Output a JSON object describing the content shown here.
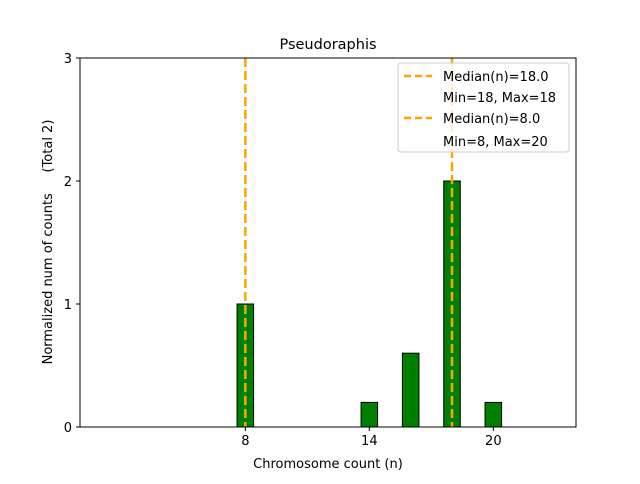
{
  "chart_data": {
    "type": "bar",
    "title": "Pseudoraphis",
    "xlabel": "Chromosome count (n)",
    "ylabel": "Normalized num of counts     (Total 2)",
    "xlim": [
      0,
      24
    ],
    "ylim": [
      0,
      3
    ],
    "xticks": [
      8,
      14,
      20
    ],
    "yticks": [
      0,
      1,
      2,
      3
    ],
    "bar_width": 0.8,
    "bar_color": "#008000",
    "bars": [
      {
        "x": 8,
        "value": 1.0
      },
      {
        "x": 14,
        "value": 0.2
      },
      {
        "x": 16,
        "value": 0.6
      },
      {
        "x": 18,
        "value": 2.0
      },
      {
        "x": 20,
        "value": 0.2
      }
    ],
    "median_lines": [
      {
        "x": 18,
        "color": "#FFA500",
        "label": "Median(n)=18.0",
        "sublabel": "Min=18, Max=18"
      },
      {
        "x": 8,
        "color": "#FFA500",
        "label": "Median(n)=8.0",
        "sublabel": "Min=8, Max=20"
      }
    ],
    "legend_position": "top-right",
    "grid": false
  }
}
